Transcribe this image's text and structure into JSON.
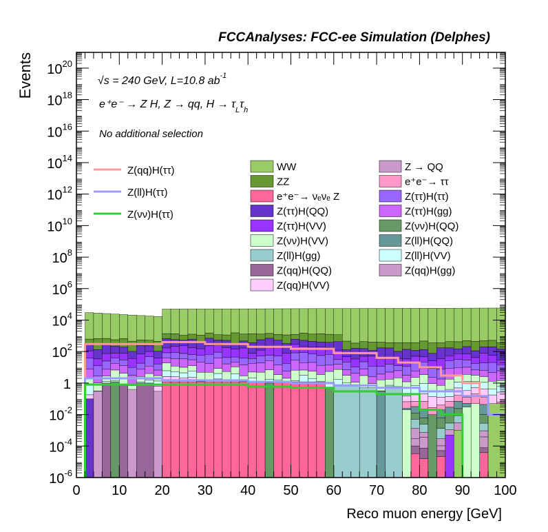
{
  "header": "FCCAnalyses: FCC-ee Simulation (Delphes)",
  "annotations": {
    "line1_sqrt": "s",
    "line1_rest": " = 240 GeV, L=10.8 ab",
    "line1_sup": "-1",
    "line2": "e⁺e⁻ → Z H, Z → qq, H → τ",
    "line2_sub1": "L",
    "line2_tau": "τ",
    "line2_sub2": "h",
    "line3": "No additional selection"
  },
  "chart_data": {
    "type": "histogram",
    "style": "stacked histogram with overlaid signal lines, log-scale y axis",
    "xlabel": "Reco muon energy [GeV]",
    "ylabel": "Events",
    "xlim": [
      0,
      100
    ],
    "ylim": [
      1e-06,
      1e+21
    ],
    "ylog": true,
    "xticks": [
      0,
      10,
      20,
      30,
      40,
      50,
      60,
      70,
      80,
      90,
      100
    ],
    "yticks": [
      {
        "value": 1e-06,
        "base": "10",
        "exp": "-6"
      },
      {
        "value": 0.0001,
        "base": "10",
        "exp": "-4"
      },
      {
        "value": 0.01,
        "base": "10",
        "exp": "-2"
      },
      {
        "value": 1,
        "base": "1",
        "exp": ""
      },
      {
        "value": 100.0,
        "base": "10",
        "exp": "2"
      },
      {
        "value": 10000.0,
        "base": "10",
        "exp": "4"
      },
      {
        "value": 1000000.0,
        "base": "10",
        "exp": "6"
      },
      {
        "value": 100000000.0,
        "base": "10",
        "exp": "8"
      },
      {
        "value": 10000000000.0,
        "base": "10",
        "exp": "10"
      },
      {
        "value": 1000000000000.0,
        "base": "10",
        "exp": "12"
      },
      {
        "value": 100000000000000.0,
        "base": "10",
        "exp": "14"
      },
      {
        "value": 1e+16,
        "base": "10",
        "exp": "16"
      },
      {
        "value": 1e+18,
        "base": "10",
        "exp": "18"
      },
      {
        "value": 1e+20,
        "base": "10",
        "exp": "20"
      }
    ],
    "x_bin_edges": [
      0,
      20,
      20,
      100
    ],
    "stack_totals_approx": [
      {
        "x": [
          2,
          20
        ],
        "value": 30000
      },
      {
        "x": [
          20,
          100
        ],
        "value": 50000
      }
    ],
    "stack_series": [
      {
        "name": "WW",
        "color": "#99CC66",
        "approx_value": 20000
      },
      {
        "name": "ZZ",
        "color": "#669933",
        "approx_value": 500
      },
      {
        "name": "e⁺e⁻→ ν_e ν_e Z",
        "color": "#FF6699",
        "approx_value": 1
      },
      {
        "name": "Z(ττ)H(QQ)",
        "color": "#6633CC",
        "approx_value": 100
      },
      {
        "name": "Z(ττ)H(VV)",
        "color": "#9933FF",
        "approx_value": 50
      },
      {
        "name": "Z(νν)H(VV)",
        "color": "#CCFFCC",
        "approx_value": 30
      },
      {
        "name": "Z(ll)H(gg)",
        "color": "#99CCCC",
        "approx_value": 10
      },
      {
        "name": "Z(qq)H(QQ)",
        "color": "#996699",
        "approx_value": 5
      },
      {
        "name": "Z(qq)H(VV)",
        "color": "#FFCCFF",
        "approx_value": 3
      },
      {
        "name": "Z → QQ",
        "color": "#CC99CC",
        "approx_value": 2
      },
      {
        "name": "e⁺e⁻→ ττ",
        "color": "#FF99CC",
        "approx_value": 2
      },
      {
        "name": "Z(ττ)H(ττ)",
        "color": "#9966FF",
        "approx_value": 40
      },
      {
        "name": "Z(ττ)H(gg)",
        "color": "#CC66FF",
        "approx_value": 20
      },
      {
        "name": "Z(νν)H(QQ)",
        "color": "#669966",
        "approx_value": 10
      },
      {
        "name": "Z(ll)H(QQ)",
        "color": "#669999",
        "approx_value": 5
      },
      {
        "name": "Z(ll)H(VV)",
        "color": "#CCFFFF",
        "approx_value": 3
      },
      {
        "name": "Z(qq)H(gg)",
        "color": "#CC99CC",
        "approx_value": 2
      }
    ],
    "line_series": [
      {
        "name": "Z(qq)H(ττ)",
        "color": "#FF9999",
        "x": [
          2,
          20,
          20,
          30,
          40,
          50,
          60,
          70,
          75,
          80,
          85,
          90,
          94
        ],
        "y": [
          300,
          300,
          400,
          300,
          200,
          150,
          80,
          40,
          20,
          10,
          3,
          1,
          0.1
        ]
      },
      {
        "name": "Z(ll)H(ττ)",
        "color": "#9999FF",
        "x": [
          2,
          20,
          20,
          30,
          40,
          50,
          60,
          70,
          80,
          90,
          96,
          100
        ],
        "y": [
          2,
          2,
          1.5,
          1.5,
          1.2,
          1,
          0.7,
          0.5,
          0.3,
          0.15,
          0.01,
          0.01
        ]
      },
      {
        "name": "Z(νν)H(ττ)",
        "color": "#33CC33",
        "x": [
          2,
          20,
          20,
          30,
          40,
          50,
          60,
          70,
          80,
          85,
          90
        ],
        "y": [
          0.8,
          0.8,
          0.8,
          0.8,
          0.6,
          0.5,
          0.3,
          0.2,
          0.02,
          0.01,
          1e-07
        ]
      }
    ],
    "legend_lines_order": [
      "Z(qq)H(ττ)",
      "Z(ll)H(ττ)",
      "Z(νν)H(ττ)"
    ],
    "legend_col1_order": [
      "WW",
      "ZZ",
      "e⁺e⁻→ ν_e ν_e Z",
      "Z(ττ)H(QQ)",
      "Z(ττ)H(VV)",
      "Z(νν)H(VV)",
      "Z(ll)H(gg)",
      "Z(qq)H(QQ)",
      "Z(qq)H(VV)"
    ],
    "legend_col2_order": [
      "Z → QQ",
      "e⁺e⁻→ ττ",
      "Z(ττ)H(ττ)",
      "Z(ττ)H(gg)",
      "Z(νν)H(QQ)",
      "Z(ll)H(QQ)",
      "Z(ll)H(VV)",
      "Z(qq)H(gg)"
    ],
    "grid": false,
    "legend_placement": "top"
  },
  "legend_labels": {
    "lines": [
      "Z(qq)H(ττ)",
      "Z(ll)H(ττ)",
      "Z(νν)H(ττ)"
    ],
    "col1": [
      "WW",
      "ZZ",
      "e⁺e⁻→ νₑνₑ Z",
      "Z(ττ)H(QQ)",
      "Z(ττ)H(VV)",
      "Z(νν)H(VV)",
      "Z(ll)H(gg)",
      "Z(qq)H(QQ)",
      "Z(qq)H(VV)"
    ],
    "col2": [
      "Z → QQ",
      "e⁺e⁻→ ττ",
      "Z(ττ)H(ττ)",
      "Z(ττ)H(gg)",
      "Z(νν)H(QQ)",
      "Z(ll)H(QQ)",
      "Z(ll)H(VV)",
      "Z(qq)H(gg)"
    ]
  }
}
